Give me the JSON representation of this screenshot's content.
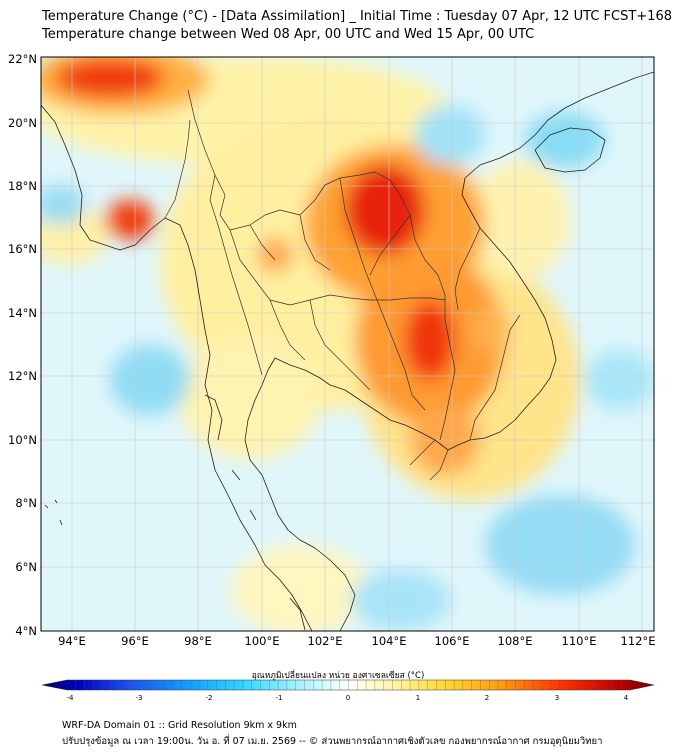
{
  "header": {
    "title_line1": "Temperature Change (°C) - [Data Assimilation] _ Initial Time : Tuesday 07 Apr, 12 UTC FCST+168",
    "title_line2": "Temperature change between Wed 08 Apr, 00 UTC and Wed 15 Apr, 00 UTC"
  },
  "map": {
    "lat_labels": [
      "22°N",
      "20°N",
      "18°N",
      "16°N",
      "14°N",
      "12°N",
      "10°N",
      "8°N",
      "6°N",
      "4°N"
    ],
    "lon_labels": [
      "94°E",
      "96°E",
      "98°E",
      "100°E",
      "102°E",
      "104°E",
      "106°E",
      "108°E",
      "110°E",
      "112°E"
    ]
  },
  "colorbar": {
    "title": "อุณหภูมิเปลี่ยนแปลง หน่วย องศาเซลเซียส (°C)",
    "ticks": [
      "-4",
      "-3",
      "-2",
      "-1",
      "0",
      "1",
      "2",
      "3",
      "4"
    ],
    "colors": [
      "#000066",
      "#0000b3",
      "#1010e0",
      "#2040f0",
      "#1a70f5",
      "#10a0ff",
      "#20c8ff",
      "#40e0ff",
      "#70ecff",
      "#a8f2ff",
      "#d8f8ff",
      "#ffffff",
      "#fff8c8",
      "#fff080",
      "#ffe040",
      "#ffc820",
      "#ffa010",
      "#ff7000",
      "#ff4000",
      "#ee1000",
      "#c00000",
      "#800000"
    ]
  },
  "footer": {
    "line1": "WRF-DA Domain 01 :: Grid Resolution 9km x 9km",
    "line2": "ปรับปรุงข้อมูล ณ เวลา 19:00น. วัน อ. ที่ 07 เม.ย. 2569 -- © ส่วนพยากรณ์อากาศเชิงตัวเลข กองพยากรณ์อากาศ กรมอุตุนิยมวิทยา"
  }
}
